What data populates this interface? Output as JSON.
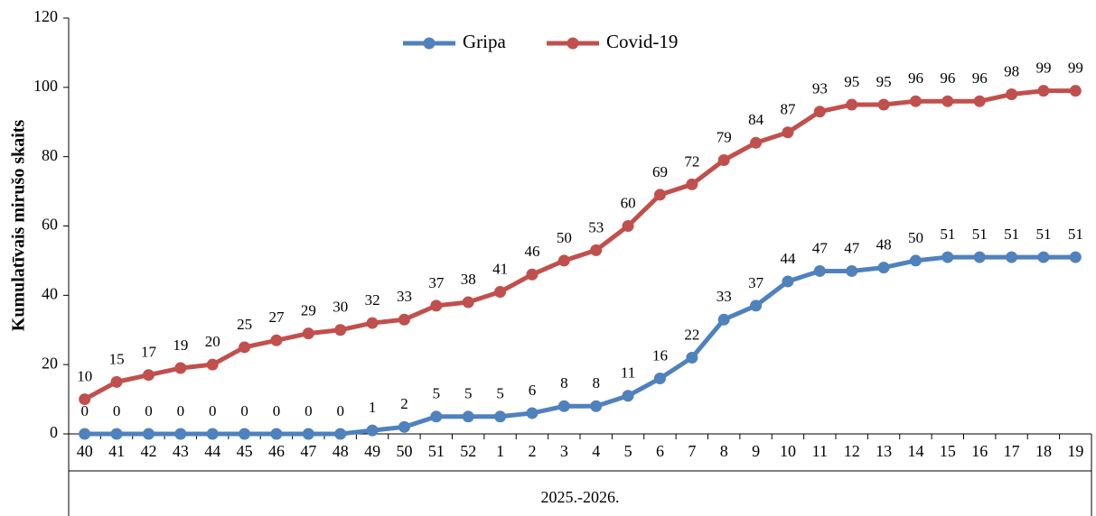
{
  "chart_data": {
    "type": "line",
    "y_label": "Kumulatīvais mirušo skaits",
    "x_label": "2025.-2026.",
    "categories": [
      "40",
      "41",
      "42",
      "43",
      "44",
      "45",
      "46",
      "47",
      "48",
      "49",
      "50",
      "51",
      "52",
      "1",
      "2",
      "3",
      "4",
      "5",
      "6",
      "7",
      "8",
      "9",
      "10",
      "11",
      "12",
      "13",
      "14",
      "15",
      "16",
      "17",
      "18",
      "19"
    ],
    "series": [
      {
        "name": "Gripa",
        "color": "#4f81bd",
        "values": [
          0,
          0,
          0,
          0,
          0,
          0,
          0,
          0,
          0,
          1,
          2,
          5,
          5,
          5,
          6,
          8,
          8,
          11,
          16,
          22,
          33,
          37,
          44,
          47,
          47,
          48,
          50,
          51,
          51,
          51,
          51,
          51
        ]
      },
      {
        "name": "Covid-19",
        "color": "#c0504d",
        "values": [
          10,
          15,
          17,
          19,
          20,
          25,
          27,
          29,
          30,
          32,
          33,
          37,
          38,
          41,
          46,
          50,
          53,
          60,
          69,
          72,
          79,
          84,
          87,
          93,
          95,
          95,
          96,
          96,
          96,
          98,
          99,
          99
        ]
      }
    ],
    "ylim": [
      0,
      120
    ],
    "yticks": [
      0,
      20,
      40,
      60,
      80,
      100,
      120
    ],
    "legend": "top"
  }
}
